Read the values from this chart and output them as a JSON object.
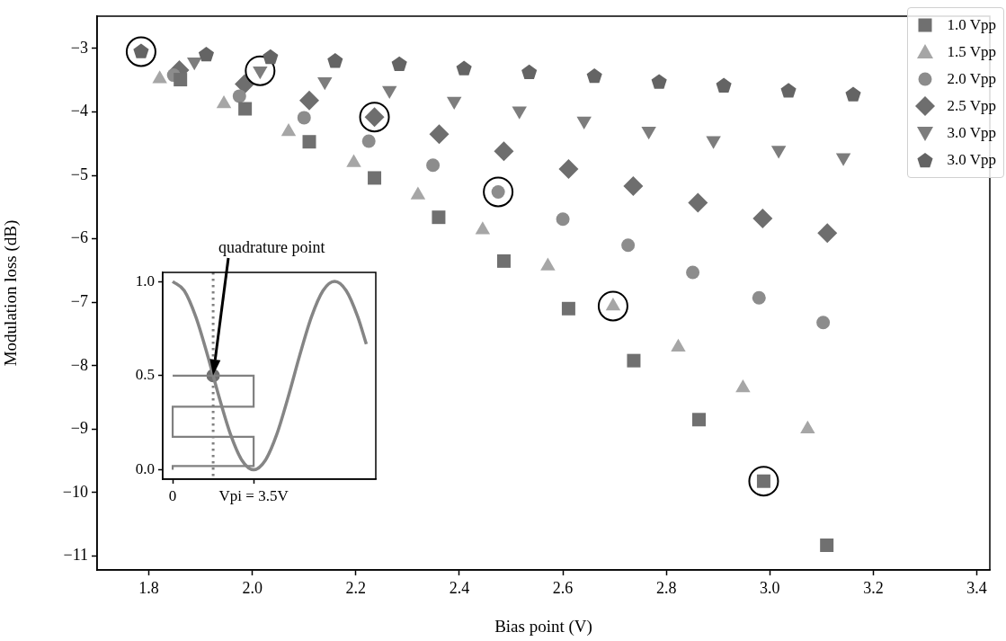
{
  "chart_data": [
    {
      "type": "scatter",
      "xlabel": "Bias point (V)",
      "ylabel": "Modulation loss (dB)",
      "xlim": [
        1.7,
        3.425
      ],
      "ylim": [
        -11.22,
        -2.49
      ],
      "xticks": [
        {
          "value": 1.8,
          "label": "1.8"
        },
        {
          "value": 2.0,
          "label": "2.0"
        },
        {
          "value": 2.2,
          "label": "2.2"
        },
        {
          "value": 2.4,
          "label": "2.4"
        },
        {
          "value": 2.6,
          "label": "2.6"
        },
        {
          "value": 2.8,
          "label": "2.8"
        },
        {
          "value": 3.0,
          "label": "3.0"
        },
        {
          "value": 3.2,
          "label": "3.2"
        },
        {
          "value": 3.4,
          "label": "3.4"
        }
      ],
      "yticks": [
        {
          "value": -3,
          "label": "−3"
        },
        {
          "value": -4,
          "label": "−4"
        },
        {
          "value": -5,
          "label": "−5"
        },
        {
          "value": -6,
          "label": "−6"
        },
        {
          "value": -7,
          "label": "−7"
        },
        {
          "value": -8,
          "label": "−8"
        },
        {
          "value": -9,
          "label": "−9"
        },
        {
          "value": -10,
          "label": "−10"
        },
        {
          "value": -11,
          "label": "−11"
        }
      ],
      "grid": false,
      "legend": "top right",
      "series": [
        {
          "name": "1.0 Vpp",
          "marker": "square",
          "color": "#707070",
          "x": [
            1.861,
            1.986,
            2.11,
            2.236,
            2.36,
            2.486,
            2.611,
            2.737,
            2.863,
            2.988,
            3.11
          ],
          "values": [
            -3.49,
            -3.95,
            -4.47,
            -5.04,
            -5.66,
            -6.35,
            -7.1,
            -7.92,
            -8.85,
            -9.82,
            -10.83
          ]
        },
        {
          "name": "1.5 Vpp",
          "marker": "triangle",
          "color": "#a6a6a6",
          "x": [
            1.821,
            1.945,
            2.07,
            2.196,
            2.32,
            2.445,
            2.571,
            2.697,
            2.823,
            2.948,
            3.073
          ],
          "values": [
            -3.48,
            -3.87,
            -4.31,
            -4.8,
            -5.31,
            -5.86,
            -6.43,
            -7.06,
            -7.71,
            -8.35,
            -9.0
          ]
        },
        {
          "name": "2.0 Vpp",
          "marker": "circle",
          "color": "#8c8c8c",
          "x": [
            1.848,
            1.975,
            2.1,
            2.225,
            2.349,
            2.475,
            2.6,
            2.726,
            2.851,
            2.979,
            3.103
          ],
          "values": [
            -3.42,
            -3.75,
            -4.09,
            -4.46,
            -4.84,
            -5.26,
            -5.69,
            -6.1,
            -6.53,
            -6.93,
            -7.32
          ]
        },
        {
          "name": "2.5 Vpp",
          "marker": "diamond",
          "color": "#6e6e6e",
          "x": [
            1.859,
            1.985,
            2.11,
            2.236,
            2.361,
            2.486,
            2.611,
            2.736,
            2.861,
            2.986,
            3.111
          ],
          "values": [
            -3.34,
            -3.56,
            -3.82,
            -4.08,
            -4.35,
            -4.62,
            -4.9,
            -5.17,
            -5.43,
            -5.68,
            -5.91
          ]
        },
        {
          "name": "3.0 Vpp",
          "marker": "triangle_down",
          "color": "#7d7d7d",
          "x": [
            1.888,
            2.015,
            2.14,
            2.265,
            2.39,
            2.516,
            2.641,
            2.766,
            2.891,
            3.017,
            3.142
          ],
          "values": [
            -3.21,
            -3.35,
            -3.52,
            -3.66,
            -3.83,
            -3.98,
            -4.14,
            -4.3,
            -4.45,
            -4.6,
            -4.72
          ]
        },
        {
          "name": "3.0 Vpp",
          "color": "#646464",
          "x": [
            1.785,
            1.911,
            2.035,
            2.16,
            2.284,
            2.409,
            2.535,
            2.661,
            2.786,
            2.911,
            3.036,
            3.161
          ],
          "values": [
            -3.05,
            -3.1,
            -3.14,
            -3.2,
            -3.25,
            -3.32,
            -3.38,
            -3.44,
            -3.53,
            -3.59,
            -3.67,
            -3.73
          ]
        },
        {
          "marker": "circle",
          "color": "#000000",
          "x": [
            1.785,
            2.015,
            2.236,
            2.475,
            2.697,
            2.988
          ],
          "values": [
            -3.05,
            -3.35,
            -4.08,
            -5.26,
            -7.06,
            -9.82
          ]
        }
      ]
    },
    {
      "type": "line",
      "annotations": [
        "quadrature point"
      ],
      "xlim": [
        -0.43,
        8.78
      ],
      "ylim": [
        -0.05,
        1.048
      ],
      "xticks": [
        {
          "value": 0,
          "label": "0"
        },
        {
          "value": 3.5,
          "label": "Vpi = 3.5V"
        }
      ],
      "yticks": [
        {
          "value": 0,
          "label": "0.0"
        },
        {
          "value": 0.5,
          "label": "0.5"
        },
        {
          "value": 1,
          "label": "1.0"
        }
      ],
      "grid": false,
      "marker": "none",
      "ref_lines": [
        {
          "axis": "x",
          "value": 1.75,
          "color": "#808080",
          "line_style": "dotted"
        }
      ],
      "series": [
        {
          "color": "#858585",
          "x": [
            0,
            0.5,
            1.0,
            1.5,
            2.0,
            2.5,
            3.0,
            3.5,
            4.0,
            4.5,
            5.0,
            5.5,
            6.0,
            6.5,
            7.0,
            7.5,
            8.0,
            8.37
          ],
          "values": [
            1,
            0.951,
            0.812,
            0.611,
            0.389,
            0.188,
            0.049,
            0,
            0.049,
            0.188,
            0.389,
            0.611,
            0.812,
            0.951,
            1,
            0.951,
            0.812,
            0.667
          ]
        },
        {
          "type": "step",
          "color": "#808080",
          "x": [
            0,
            3.5,
            3.5,
            0,
            0,
            3.5,
            3.5,
            0,
            0
          ],
          "values": [
            0.5,
            0.5,
            0.335,
            0.335,
            0.175,
            0.175,
            0.02,
            0.02,
            0
          ]
        },
        {
          "type": "scatter",
          "marker": "circle",
          "color": "#707070",
          "x": [
            1.75
          ],
          "values": [
            0.5
          ]
        }
      ]
    }
  ]
}
